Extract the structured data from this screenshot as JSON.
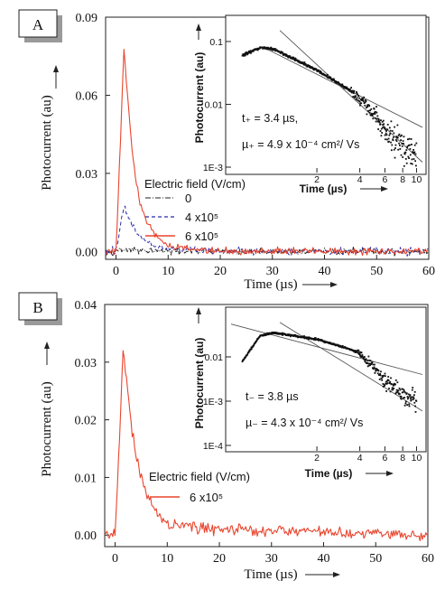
{
  "panels": [
    {
      "label": "A",
      "ylabel": "Photocurrent (au)",
      "xlabel": "Time (µs)",
      "legend_title": "Electric field (V/cm)",
      "legend_entries": [
        "0",
        "4 x10⁵",
        "6 x10⁵"
      ],
      "inset_xlabel": "Time (µs)",
      "inset_ylabel": "Photocurrent (au)",
      "inset_ann1": "t₊ = 3.4 µs,",
      "inset_ann2": "µ₊ = 4.9 x 10⁻⁴ cm²/ Vs"
    },
    {
      "label": "B",
      "ylabel": "Photocurrent (au)",
      "xlabel": "Time (µs)",
      "legend_title": "Electric field (V/cm)",
      "legend_entries": [
        "6 x10⁵"
      ],
      "inset_xlabel": "Time (µs)",
      "inset_ylabel": "Photocurrent (au)",
      "inset_ann1": "t₋ = 3.8 µs",
      "inset_ann2": "µ₋ = 4.3 x 10⁻⁴ cm²/ Vs"
    }
  ],
  "colors": {
    "red": "#e8452e",
    "blue": "#2b2ba8",
    "black": "#222222",
    "fit": "#555555"
  },
  "chart_data": [
    {
      "type": "line",
      "panel": "A",
      "xlabel": "Time (µs)",
      "ylabel": "Photocurrent (au)",
      "xlim": [
        -2,
        60
      ],
      "ylim": [
        -0.003,
        0.09
      ],
      "xticks": [
        0,
        10,
        20,
        30,
        40,
        50,
        60
      ],
      "yticks": [
        0.0,
        0.03,
        0.06,
        0.09
      ],
      "ytick_labels": [
        "0.00",
        "0.03",
        "0.06",
        "0.09"
      ],
      "legend_title": "Electric field (V/cm)",
      "series": [
        {
          "name": "0",
          "color": "#222222",
          "dash": "dashdot",
          "peak": 0.001,
          "tau": 2.0,
          "noise": 0.0012,
          "x": [
            0,
            1,
            2,
            3,
            5,
            10,
            20,
            40,
            60
          ],
          "y": [
            0,
            0.001,
            0.0008,
            0.0005,
            0.0002,
            0,
            0,
            0,
            0
          ]
        },
        {
          "name": "4 x10⁵",
          "color": "#2b2ba8",
          "dash": "dash",
          "peak": 0.018,
          "tau": 2.6,
          "noise": 0.0013,
          "x": [
            0,
            1,
            1.5,
            2,
            3,
            5,
            8,
            10,
            20,
            60
          ],
          "y": [
            0,
            0.012,
            0.018,
            0.015,
            0.01,
            0.005,
            0.002,
            0.001,
            0,
            0
          ]
        },
        {
          "name": "6 x10⁵",
          "color": "#e8452e",
          "dash": "solid",
          "peak": 0.079,
          "tau": 2.5,
          "noise": 0.0013,
          "x": [
            0,
            1,
            1.5,
            2,
            3,
            4,
            5,
            6,
            8,
            10,
            20,
            60
          ],
          "y": [
            0,
            0.05,
            0.079,
            0.065,
            0.04,
            0.025,
            0.016,
            0.011,
            0.005,
            0.002,
            0,
            0
          ]
        }
      ],
      "inset": {
        "type": "scatter",
        "xlabel": "Time (µs)",
        "ylabel": "Photocurrent (au)",
        "xscale": "log",
        "yscale": "log",
        "xlim": [
          0.5,
          11
        ],
        "ylim": [
          0.001,
          0.2
        ],
        "xticks": [
          2,
          4,
          6,
          8,
          10
        ],
        "yticks": [
          0.1,
          0.01,
          0.001
        ],
        "ytick_labels": [
          "0.1",
          "0.01",
          "1E-3"
        ],
        "transit_time": 3.4,
        "data": {
          "x": [
            0.6,
            0.8,
            1,
            2,
            3,
            3.4,
            4,
            5,
            6,
            8,
            10
          ],
          "y": [
            0.06,
            0.08,
            0.075,
            0.035,
            0.02,
            0.017,
            0.012,
            0.007,
            0.004,
            0.002,
            0.0015
          ]
        },
        "fit_pre": {
          "x": [
            0.9,
            11
          ],
          "y": [
            0.075,
            0.0043
          ]
        },
        "fit_post": {
          "x": [
            1.1,
            11
          ],
          "y": [
            0.15,
            0.0012
          ]
        }
      }
    },
    {
      "type": "line",
      "panel": "B",
      "xlabel": "Time (µs)",
      "ylabel": "Photocurrent (au)",
      "xlim": [
        -2,
        60
      ],
      "ylim": [
        -0.002,
        0.04
      ],
      "xticks": [
        0,
        10,
        20,
        30,
        40,
        50,
        60
      ],
      "yticks": [
        0.0,
        0.01,
        0.02,
        0.03,
        0.04
      ],
      "ytick_labels": [
        "0.00",
        "0.01",
        "0.02",
        "0.03",
        "0.04"
      ],
      "legend_title": "Electric field (V/cm)",
      "series": [
        {
          "name": "6 x10⁵",
          "color": "#e8452e",
          "dash": "solid",
          "peak": 0.033,
          "tau": 3.0,
          "noise": 0.0009,
          "x": [
            0,
            1,
            1.5,
            2,
            3,
            4,
            5,
            6,
            8,
            10,
            20,
            60
          ],
          "y": [
            0,
            0.02,
            0.033,
            0.028,
            0.02,
            0.014,
            0.01,
            0.007,
            0.004,
            0.002,
            0.001,
            0
          ]
        }
      ],
      "inset": {
        "type": "scatter",
        "xlabel": "Time (µs)",
        "ylabel": "Photocurrent (au)",
        "xscale": "log",
        "yscale": "log",
        "xlim": [
          0.5,
          11
        ],
        "ylim": [
          0.0001,
          0.1
        ],
        "xticks": [
          2,
          4,
          6,
          8,
          10
        ],
        "yticks": [
          0.01,
          0.001,
          0.0001
        ],
        "ytick_labels": [
          "0.01",
          "1E-3",
          "1E-4"
        ],
        "transit_time": 3.8,
        "data": {
          "x": [
            0.6,
            0.8,
            1,
            2,
            3,
            3.8,
            5,
            6,
            8,
            10
          ],
          "y": [
            0.008,
            0.03,
            0.035,
            0.025,
            0.017,
            0.013,
            0.006,
            0.003,
            0.0015,
            0.001
          ]
        },
        "fit_pre": {
          "x": [
            0.5,
            11
          ],
          "y": [
            0.055,
            0.004
          ]
        },
        "fit_post": {
          "x": [
            1.1,
            11
          ],
          "y": [
            0.06,
            0.0006
          ]
        }
      }
    }
  ]
}
